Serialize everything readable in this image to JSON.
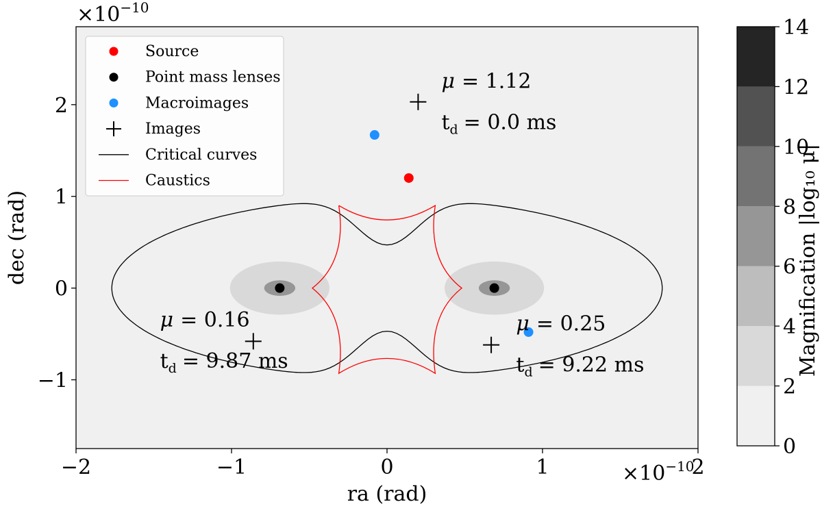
{
  "chart_data": {
    "type": "scatter",
    "xlabel": "ra (rad)",
    "ylabel": "dec (rad)",
    "x_multiplier": {
      "base": "×10",
      "exponent": "−10"
    },
    "y_multiplier": {
      "base": "×10",
      "exponent": "−10"
    },
    "xlim": [
      -2.0,
      2.0
    ],
    "ylim": [
      -1.75,
      2.85
    ],
    "x_ticks": [
      {
        "value": -2,
        "label": "−2"
      },
      {
        "value": -1,
        "label": "−1"
      },
      {
        "value": 0,
        "label": "0"
      },
      {
        "value": 1,
        "label": "1"
      },
      {
        "value": 2,
        "label": "2"
      }
    ],
    "y_ticks": [
      {
        "value": -1,
        "label": "−1"
      },
      {
        "value": 0,
        "label": "0"
      },
      {
        "value": 1,
        "label": "1"
      },
      {
        "value": 2,
        "label": "2"
      }
    ],
    "background_color": "#f0f0f0",
    "magnification_regions": [
      {
        "x": -0.69,
        "y": 0,
        "rx": 0.32,
        "ry": 0.29,
        "color": "#d9d9d9"
      },
      {
        "x": 0.69,
        "y": 0,
        "rx": 0.32,
        "ry": 0.29,
        "color": "#d9d9d9"
      },
      {
        "x": -0.69,
        "y": 0,
        "rx": 0.1,
        "ry": 0.085,
        "color": "#969696"
      },
      {
        "x": 0.69,
        "y": 0,
        "rx": 0.1,
        "ry": 0.085,
        "color": "#969696"
      }
    ],
    "series": [
      {
        "name": "Source",
        "marker": "dot",
        "color": "#ff0000",
        "points": [
          [
            0.14,
            1.2
          ]
        ]
      },
      {
        "name": "Point mass lenses",
        "marker": "dot",
        "color": "#000000",
        "points": [
          [
            -0.69,
            0.0
          ],
          [
            0.69,
            0.0
          ]
        ]
      },
      {
        "name": "Macroimages",
        "marker": "dot",
        "color": "#1e90ff",
        "points": [
          [
            -0.08,
            1.67
          ],
          [
            0.91,
            -0.48
          ]
        ]
      },
      {
        "name": "Images",
        "marker": "plus",
        "color": "#000000",
        "points": [
          [
            0.2,
            2.03
          ],
          [
            -0.86,
            -0.58
          ],
          [
            0.67,
            -0.62
          ]
        ]
      },
      {
        "name": "Critical curves",
        "marker": "line",
        "color": "#000000"
      },
      {
        "name": "Caustics",
        "marker": "line",
        "color": "#ff0000"
      }
    ],
    "critical_curve": {
      "x_extent": 1.77,
      "y_extent": 0.98,
      "waist_height": 0.47,
      "waist_width": 0.28
    },
    "caustic": {
      "cusps": [
        [
          -0.31,
          0.9
        ],
        [
          0.31,
          0.9
        ],
        [
          0.48,
          0.0
        ],
        [
          0.31,
          -0.93
        ],
        [
          -0.31,
          -0.93
        ],
        [
          -0.48,
          0.0
        ]
      ]
    },
    "annotations": [
      {
        "x": 0.35,
        "y": 2.18,
        "mu_label": "μ",
        "mu_value": "= 1.12",
        "td_label": "t",
        "td_sub": "d",
        "td_value": "= 0.0 ms"
      },
      {
        "x": -1.46,
        "y": -0.42,
        "mu_label": "μ",
        "mu_value": "= 0.16",
        "td_label": "t",
        "td_sub": "d",
        "td_value": "= 9.87 ms"
      },
      {
        "x": 0.83,
        "y": -0.46,
        "mu_label": "μ",
        "mu_value": "= 0.25",
        "td_label": "t",
        "td_sub": "d",
        "td_value": "= 9.22 ms"
      }
    ],
    "legend": {
      "location": "upper-left"
    },
    "colorbar": {
      "label": "Magnification |log₁₀ μ|",
      "range": [
        0,
        14
      ],
      "ticks": [
        {
          "value": 0,
          "label": "0"
        },
        {
          "value": 2,
          "label": "2"
        },
        {
          "value": 4,
          "label": "4"
        },
        {
          "value": 6,
          "label": "6"
        },
        {
          "value": 8,
          "label": "8"
        },
        {
          "value": 10,
          "label": "10"
        },
        {
          "value": 12,
          "label": "12"
        },
        {
          "value": 14,
          "label": "14"
        }
      ],
      "levels": [
        {
          "from": 0,
          "to": 2,
          "color": "#f0f0f0"
        },
        {
          "from": 2,
          "to": 4,
          "color": "#d9d9d9"
        },
        {
          "from": 4,
          "to": 6,
          "color": "#bdbdbd"
        },
        {
          "from": 6,
          "to": 8,
          "color": "#969696"
        },
        {
          "from": 8,
          "to": 10,
          "color": "#737373"
        },
        {
          "from": 10,
          "to": 12,
          "color": "#525252"
        },
        {
          "from": 12,
          "to": 14,
          "color": "#252525"
        }
      ]
    }
  }
}
